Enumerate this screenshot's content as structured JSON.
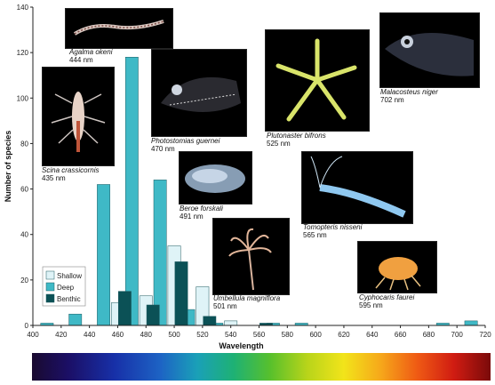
{
  "chart_data": {
    "type": "bar",
    "xlabel": "Wavelength",
    "ylabel": "Number of species",
    "xlim": [
      400,
      720
    ],
    "ylim": [
      0,
      140
    ],
    "xticks": [
      400,
      420,
      440,
      460,
      480,
      500,
      520,
      540,
      560,
      580,
      600,
      620,
      640,
      660,
      680,
      700,
      720
    ],
    "yticks": [
      0,
      20,
      40,
      60,
      80,
      100,
      120,
      140
    ],
    "legend_position": "bottom-left",
    "series": [
      {
        "name": "Shallow",
        "color": "#dff3f7",
        "points": [
          [
            460,
            10
          ],
          [
            480,
            13
          ],
          [
            500,
            35
          ],
          [
            520,
            17
          ],
          [
            540,
            2
          ]
        ]
      },
      {
        "name": "Deep",
        "color": "#3fb9c6",
        "points": [
          [
            410,
            1
          ],
          [
            430,
            5
          ],
          [
            450,
            62
          ],
          [
            470,
            118
          ],
          [
            490,
            64
          ],
          [
            510,
            7
          ],
          [
            530,
            1
          ],
          [
            570,
            1
          ],
          [
            590,
            1
          ],
          [
            690,
            1
          ],
          [
            710,
            2
          ]
        ]
      },
      {
        "name": "Benthic",
        "color": "#0b5156",
        "points": [
          [
            465,
            15
          ],
          [
            485,
            9
          ],
          [
            505,
            28
          ],
          [
            525,
            4
          ],
          [
            565,
            1
          ]
        ]
      }
    ],
    "spectrum_bar": true,
    "annotations": [
      {
        "species": "Agalma okeni",
        "wavelength": "444 nm"
      },
      {
        "species": "Scina crassicornis",
        "wavelength": "435 nm"
      },
      {
        "species": "Photostomias guernei",
        "wavelength": "470 nm"
      },
      {
        "species": "Plutonaster bifrons",
        "wavelength": "525 nm"
      },
      {
        "species": "Malacosteus niger",
        "wavelength": "702 nm"
      },
      {
        "species": "Beroe forskali",
        "wavelength": "491 nm"
      },
      {
        "species": "Tomopteris nisseni",
        "wavelength": "565 nm"
      },
      {
        "species": "Umbellula magniflora",
        "wavelength": "501 nm"
      },
      {
        "species": "Cyphocaris faurei",
        "wavelength": "595 nm"
      }
    ]
  }
}
